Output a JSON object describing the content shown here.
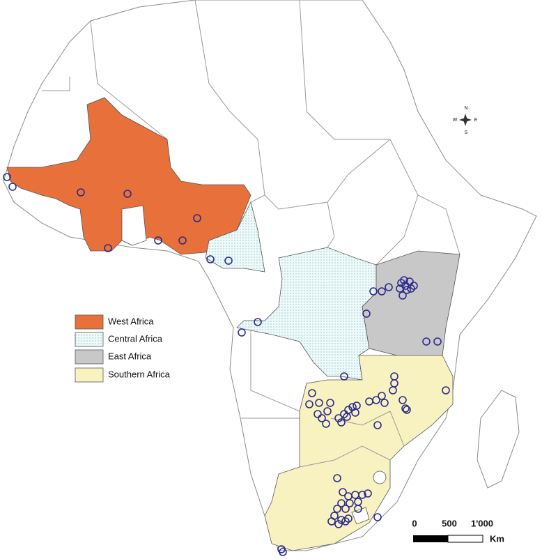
{
  "legend": {
    "items": [
      {
        "label": "West Africa"
      },
      {
        "label": "Central Africa"
      },
      {
        "label": "East Africa"
      },
      {
        "label": "Southern Africa"
      }
    ]
  },
  "compass": {
    "north": "N",
    "east": "E",
    "south": "S",
    "west": "W"
  },
  "scale_bar": {
    "ticks": [
      "0",
      "500",
      "1'000"
    ],
    "unit": "Km"
  }
}
